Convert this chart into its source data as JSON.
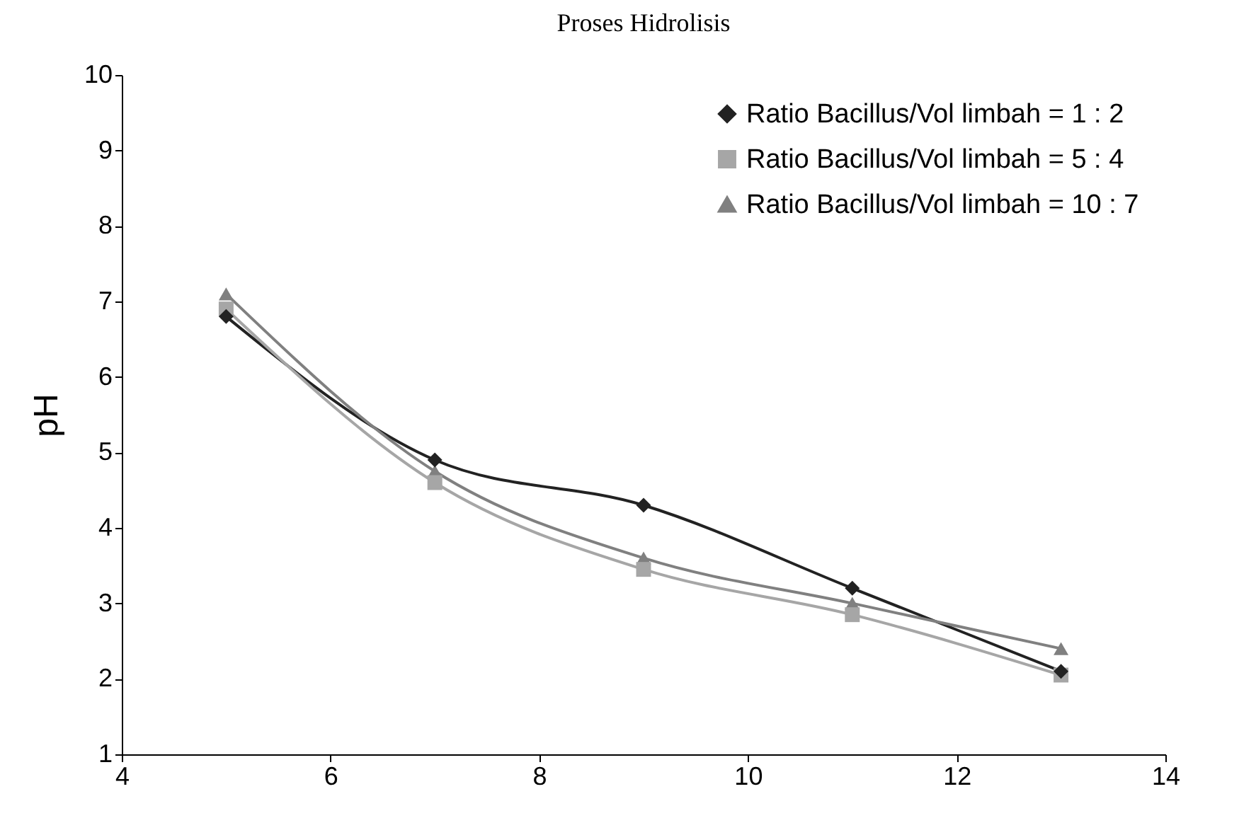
{
  "chart_data": {
    "type": "line",
    "title": "Proses Hidrolisis",
    "ylabel": "pH",
    "x": [
      5,
      7,
      9,
      11,
      13
    ],
    "xlim": [
      4,
      14
    ],
    "xticks": [
      4,
      6,
      8,
      10,
      12,
      14
    ],
    "ylim": [
      1,
      10
    ],
    "yticks": [
      1,
      2,
      3,
      4,
      5,
      6,
      7,
      8,
      9,
      10
    ],
    "grid": false,
    "legend": "top right",
    "line_style": "solid",
    "series": [
      {
        "name": "Ratio Bacillus/Vol limbah = 1 : 2",
        "color": "#222222",
        "marker": "diamond",
        "values": [
          6.8,
          4.9,
          4.3,
          3.2,
          2.1
        ]
      },
      {
        "name": "Ratio Bacillus/Vol limbah = 5 : 4",
        "color": "#a6a6a6",
        "marker": "square",
        "values": [
          6.9,
          4.6,
          3.45,
          2.85,
          2.05
        ]
      },
      {
        "name": "Ratio Bacillus/Vol limbah = 10 : 7",
        "color": "#808080",
        "marker": "triangle",
        "values": [
          7.1,
          4.75,
          3.6,
          3.0,
          2.4
        ]
      }
    ]
  }
}
